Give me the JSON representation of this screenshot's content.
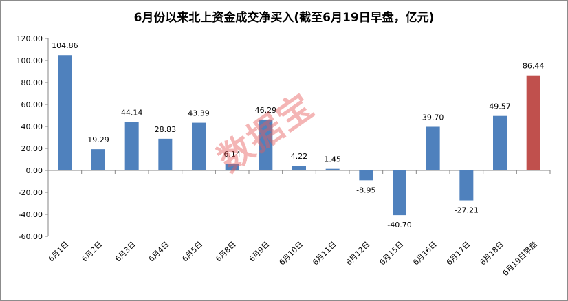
{
  "chart_data": {
    "type": "bar",
    "title": "6月份以来北上资金成交净买入(截至6月19日早盘，亿元)",
    "categories": [
      "6月1日",
      "6月2日",
      "6月3日",
      "6月4日",
      "6月5日",
      "6月8日",
      "6月9日",
      "6月10日",
      "6月11日",
      "6月12日",
      "6月15日",
      "6月16日",
      "6月17日",
      "6月18日",
      "6月19日早盘"
    ],
    "values": [
      104.86,
      19.29,
      44.14,
      28.83,
      43.39,
      6.14,
      46.29,
      4.22,
      1.45,
      -8.95,
      -40.7,
      39.7,
      -27.21,
      49.57,
      86.44
    ],
    "value_labels": [
      "104.86",
      "19.29",
      "44.14",
      "28.83",
      "43.39",
      "6.14",
      "46.29",
      "4.22",
      "1.45",
      "-8.95",
      "-40.70",
      "39.70",
      "-27.21",
      "49.57",
      "86.44"
    ],
    "ylim": [
      -60,
      120
    ],
    "yticks": [
      -60,
      -40,
      -20,
      0,
      20,
      40,
      60,
      80,
      100,
      120
    ],
    "ytick_labels": [
      "-60.00",
      "-40.00",
      "-20.00",
      "0.00",
      "20.00",
      "40.00",
      "60.00",
      "80.00",
      "100.00",
      "120.00"
    ],
    "xlabel": "",
    "ylabel": "",
    "grid": false,
    "colors": {
      "default": "#4f81bd",
      "highlight": "#c0504d"
    },
    "highlight_index": 14
  },
  "watermark": "数据宝"
}
